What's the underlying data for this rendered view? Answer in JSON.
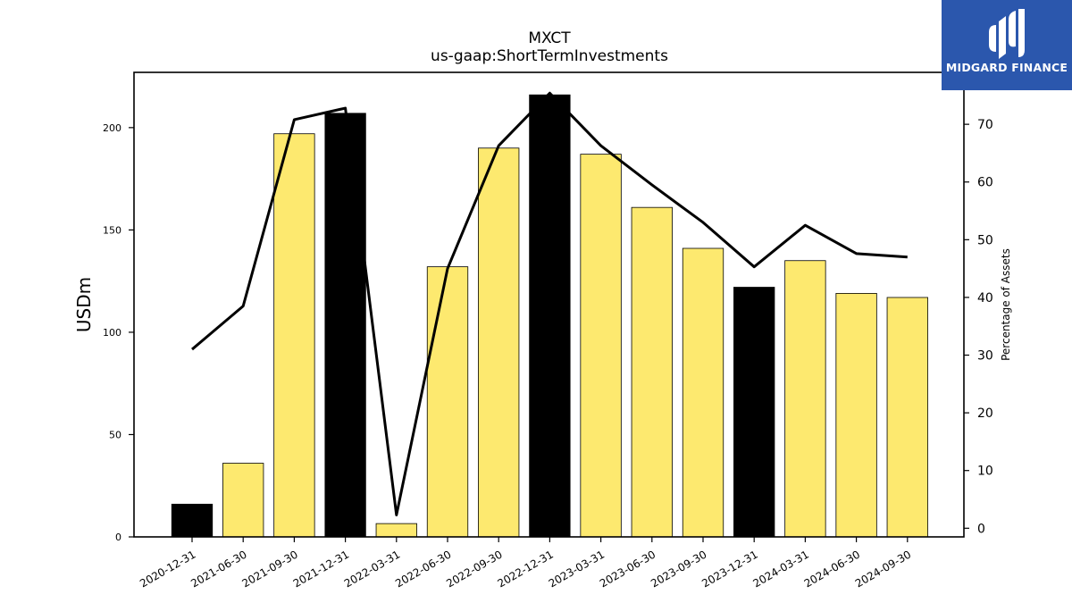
{
  "chart_data": {
    "type": "bar",
    "title": "MXCT",
    "subtitle": "us-gaap:ShortTermInvestments",
    "ylabel": "USDm",
    "y2label": "Percentage of Assets",
    "ylim": [
      0,
      227
    ],
    "y2lim": [
      -1.5,
      79
    ],
    "yticks": [
      0,
      50,
      100,
      150,
      200
    ],
    "y2ticks": [
      0,
      10,
      20,
      30,
      40,
      50,
      60,
      70
    ],
    "categories": [
      "2020-12-31",
      "2021-06-30",
      "2021-09-30",
      "2021-12-31",
      "2022-03-31",
      "2022-06-30",
      "2022-09-30",
      "2022-12-31",
      "2023-03-31",
      "2023-06-30",
      "2023-09-30",
      "2023-12-31",
      "2024-03-31",
      "2024-06-30",
      "2024-09-30"
    ],
    "series": [
      {
        "kind": "bar",
        "values": [
          16,
          36,
          197,
          207,
          6.5,
          132,
          190,
          216,
          187,
          161,
          141,
          122,
          135,
          119,
          117
        ],
        "colors": [
          "#000000",
          "#fde96f",
          "#fde96f",
          "#000000",
          "#fde96f",
          "#fde96f",
          "#fde96f",
          "#000000",
          "#fde96f",
          "#fde96f",
          "#fde96f",
          "#000000",
          "#fde96f",
          "#fde96f",
          "#fde96f"
        ]
      },
      {
        "kind": "line",
        "axis": "right",
        "color": "#000000",
        "values": [
          31,
          38.5,
          70.8,
          72.8,
          2.3,
          45,
          66.3,
          75.4,
          66.3,
          59.5,
          53,
          45.3,
          52.5,
          47.6,
          47
        ]
      }
    ],
    "grid": false,
    "legend": "none"
  },
  "logo": {
    "text": "MIDGARD FINANCE",
    "icon": "midgard-logo-icon",
    "color": "#2b57ad"
  }
}
